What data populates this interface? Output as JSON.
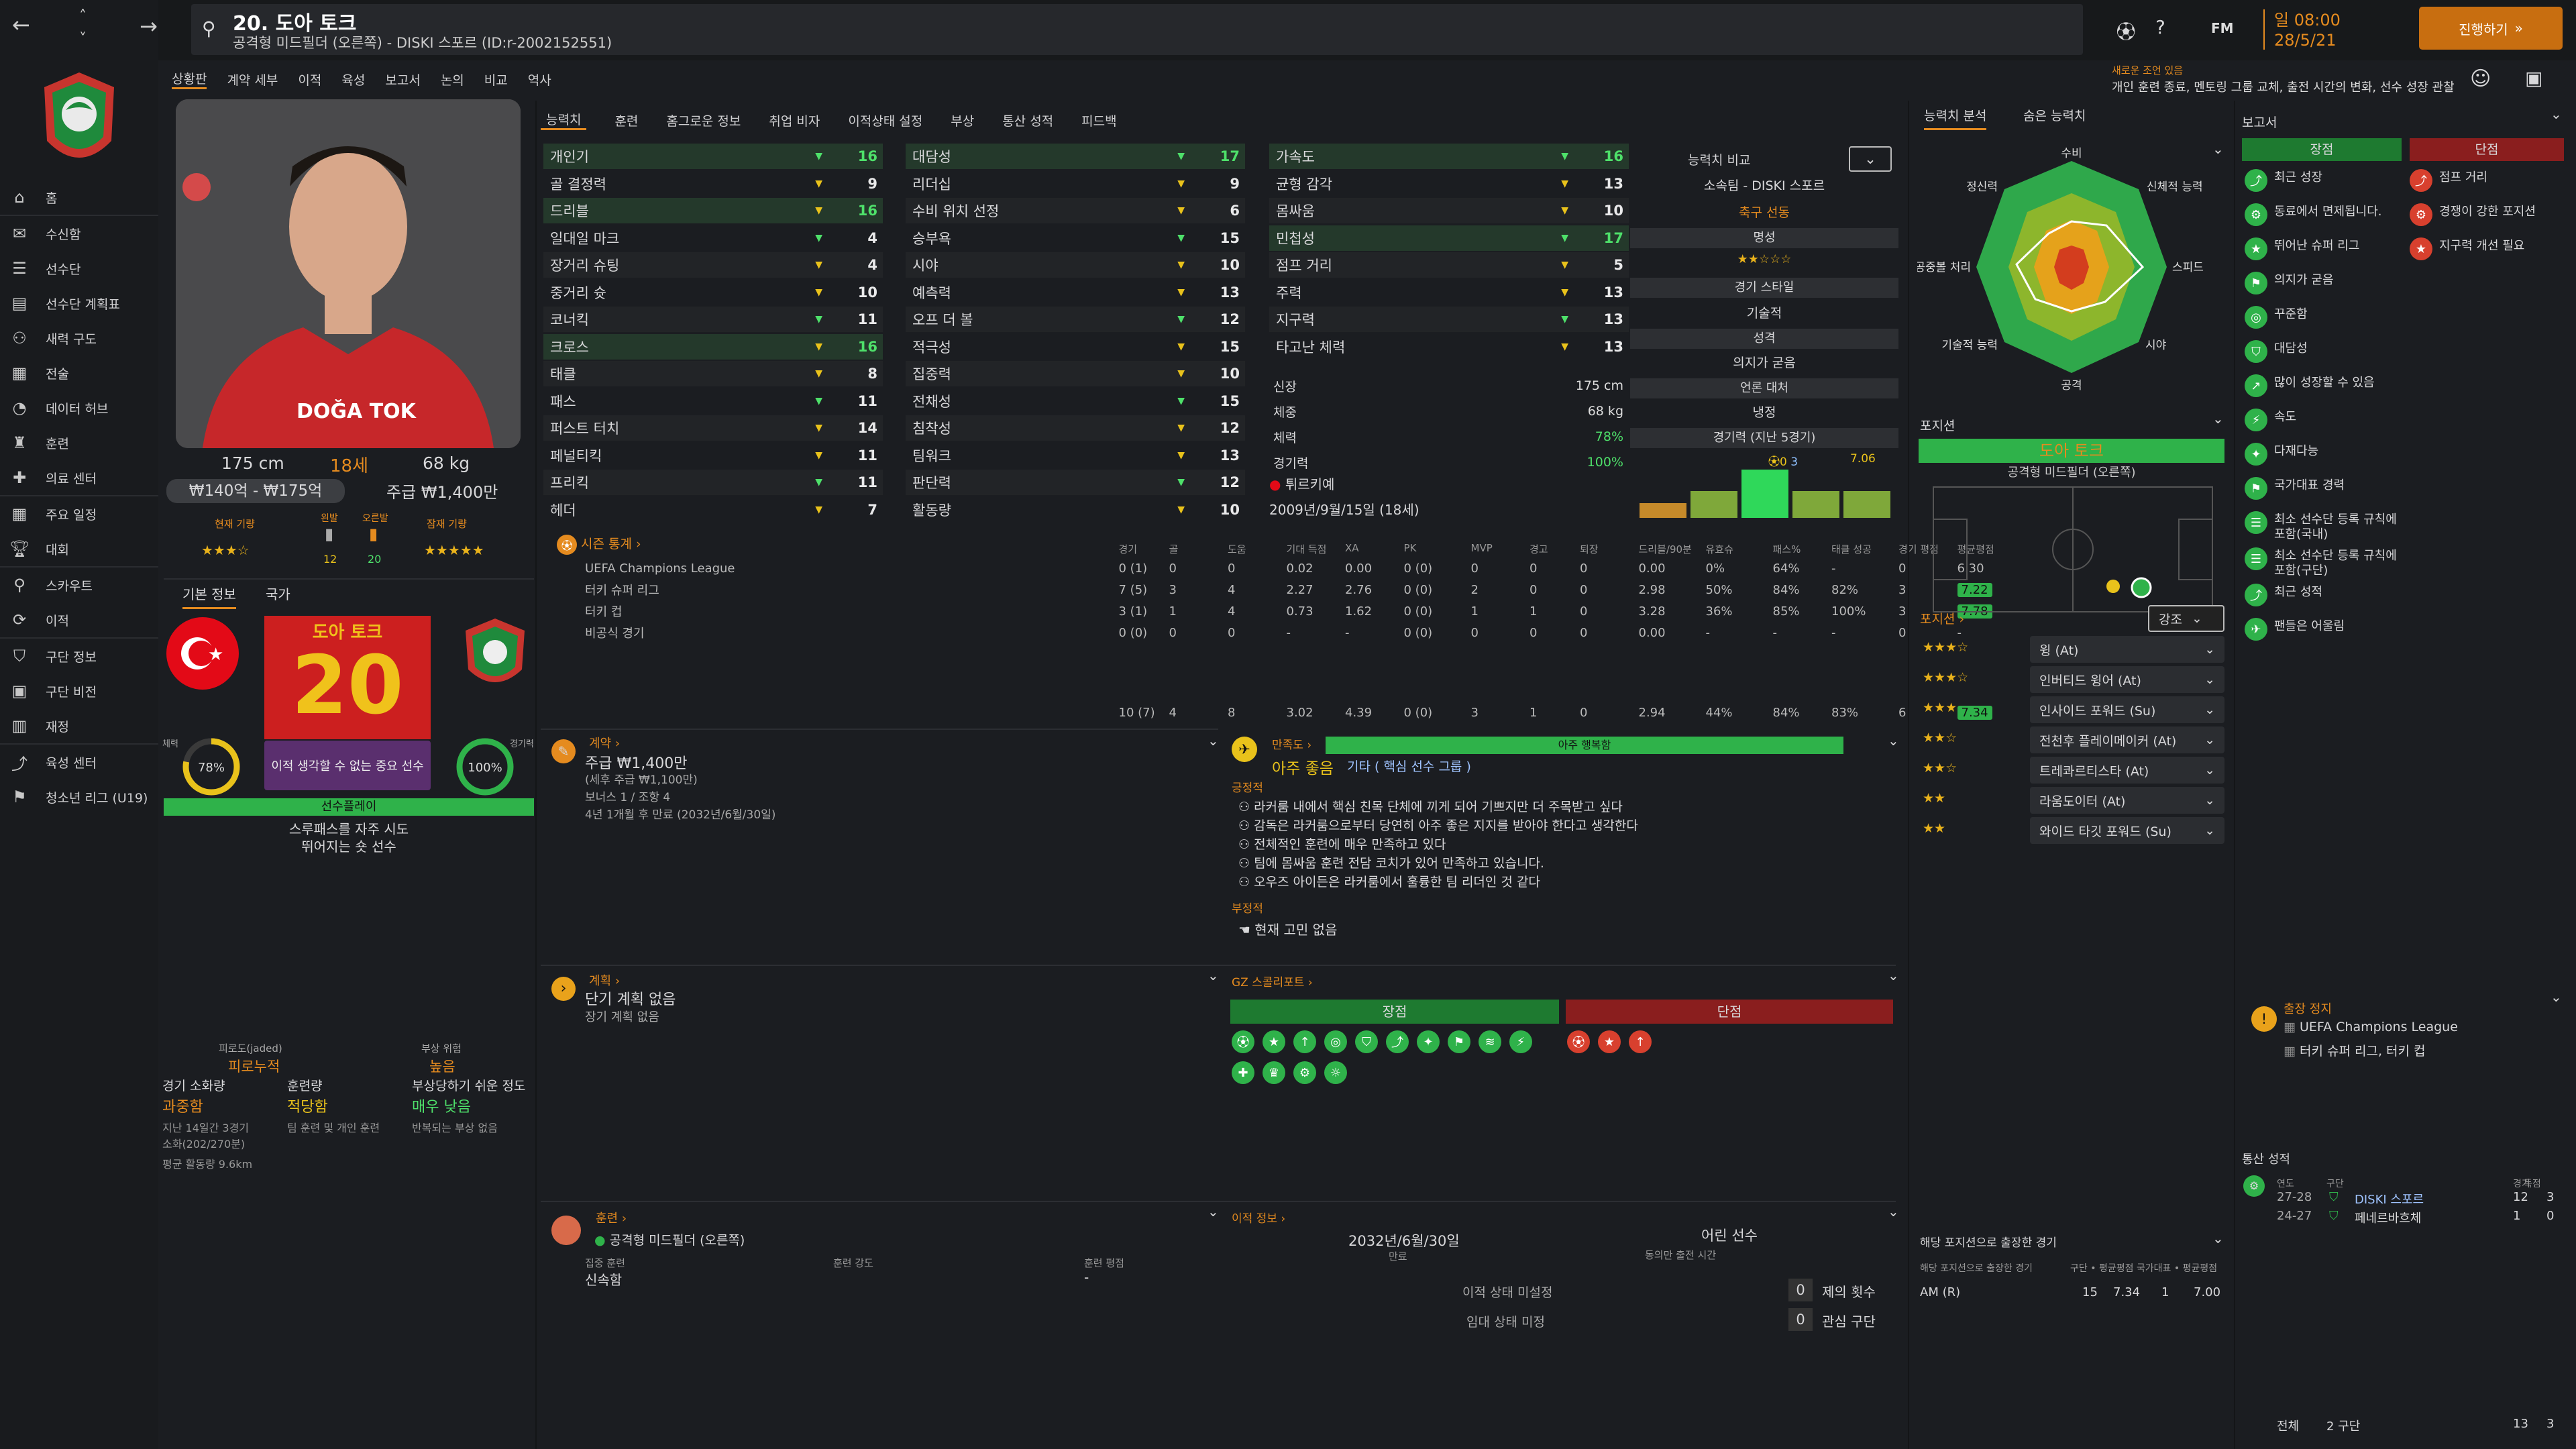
{
  "header": {
    "title": "20. 도아 토크",
    "subtitle": "공격형 미드필더 (오른쪽) - DISKI 스포르 (ID:r-2002152551)",
    "day": "일 08:00",
    "date": "28/5/21",
    "continue": "진행하기",
    "notice_title": "새로운 조언 있음",
    "notice": "개인 훈련 종료, 멘토링 그룹 교체, 출전 시간의 변화, 선수 성장 관찰",
    "fm": "FM"
  },
  "nav": {
    "items": [
      "홈",
      "수신함",
      "선수단",
      "선수단 계획표",
      "새력 구도",
      "전술",
      "데이터 허브",
      "훈련",
      "의료 센터",
      "주요 일정",
      "대회",
      "스카우트",
      "이적",
      "구단 정보",
      "구단 비전",
      "재정",
      "육성 센터",
      "청소년 리그 (U19)"
    ]
  },
  "menu": {
    "items": [
      "상황판",
      "계약 세부",
      "이적",
      "육성",
      "보고서",
      "논의",
      "비교",
      "역사"
    ]
  },
  "tabs": {
    "items": [
      "능력치",
      "훈련",
      "홈그로운 정보",
      "취업 비자",
      "이적상태 설정",
      "부상",
      "통산 성적",
      "피드백"
    ]
  },
  "player": {
    "shirt": "DOĞA TOK",
    "height": "175 cm",
    "age": "18세",
    "weight": "68 kg",
    "value": "₩140억 - ₩175억",
    "wage": "주급 ₩1,400만",
    "cur_label": "현재 기량",
    "pot_label": "잠재 기량",
    "left_label": "왼발",
    "right_label": "오른발",
    "left_val": "12",
    "right_val": "20",
    "cur_stars": "★★★☆",
    "pot_stars": "★★★★★",
    "tab_basic": "기본 정보",
    "tab_nation": "국가",
    "name_ko": "도아 토크",
    "number": "20",
    "fit_pct": "78%",
    "match_pct": "100%",
    "fit_label": "체력",
    "match_label": "경기력",
    "important": "이적 생각할 수 없는 중요 선수",
    "status_bar": "선수플레이",
    "trait1": "스루패스를 자주 시도",
    "trait2": "뛰어지는 숏 선수",
    "fatigue_label": "피로도(jaded)",
    "fatigue": "피로누적",
    "injury_label": "부상 위험",
    "injury": "높음",
    "load_label": "경기 소화량",
    "load": "과중함",
    "train_label": "훈련량",
    "train": "적당함",
    "inj2_label": "부상당하기 쉬운 정도",
    "inj2": "매우 낮음",
    "l1": "지난 14일간 3경기",
    "l2": "소화(202/270분)",
    "l3": "평균 활동량 9.6km",
    "t1": "팀 훈련 및 개인 훈련",
    "i1": "반복되는 부상 없음"
  },
  "attrs": {
    "col1": [
      [
        "개인기",
        "16",
        "g"
      ],
      [
        "골 결정력",
        "9",
        "w"
      ],
      [
        "드리블",
        "16",
        "g"
      ],
      [
        "일대일 마크",
        "4",
        "w"
      ],
      [
        "장거리 슈팅",
        "4",
        "w"
      ],
      [
        "중거리 슛",
        "10",
        "w"
      ],
      [
        "코너킥",
        "11",
        "w"
      ],
      [
        "크로스",
        "16",
        "g"
      ],
      [
        "태클",
        "8",
        "w"
      ],
      [
        "패스",
        "11",
        "w"
      ],
      [
        "퍼스트 터치",
        "14",
        "w"
      ],
      [
        "페널티킥",
        "11",
        "w"
      ],
      [
        "프리킥",
        "11",
        "w"
      ],
      [
        "헤더",
        "7",
        "w"
      ]
    ],
    "col2": [
      [
        "대담성",
        "17",
        "g"
      ],
      [
        "리더십",
        "9",
        "w"
      ],
      [
        "수비 위치 선정",
        "6",
        "w"
      ],
      [
        "승부욕",
        "15",
        "w"
      ],
      [
        "시야",
        "10",
        "w"
      ],
      [
        "예측력",
        "13",
        "w"
      ],
      [
        "오프 더 볼",
        "12",
        "w"
      ],
      [
        "적극성",
        "15",
        "w"
      ],
      [
        "집중력",
        "10",
        "w"
      ],
      [
        "전채성",
        "15",
        "w"
      ],
      [
        "침착성",
        "12",
        "w"
      ],
      [
        "팀워크",
        "13",
        "w"
      ],
      [
        "판단력",
        "12",
        "w"
      ],
      [
        "활동량",
        "10",
        "w"
      ]
    ],
    "col3": [
      [
        "가속도",
        "16",
        "g"
      ],
      [
        "균형 감각",
        "13",
        "w"
      ],
      [
        "몸싸움",
        "10",
        "w"
      ],
      [
        "민첩성",
        "17",
        "g"
      ],
      [
        "점프 거리",
        "5",
        "w"
      ],
      [
        "주력",
        "13",
        "w"
      ],
      [
        "지구력",
        "13",
        "w"
      ],
      [
        "타고난 체력",
        "13",
        "w"
      ]
    ],
    "bio": [
      [
        "신장",
        "175 cm"
      ],
      [
        "체중",
        "68 kg"
      ],
      [
        "체력",
        "78%"
      ],
      [
        "경기력",
        "100%"
      ]
    ],
    "nation": "튀르키예",
    "dob": "2009년/9월/15일 (18세)"
  },
  "compare": {
    "label": "능력치 비교",
    "club": "소속팀 - DISKI 스포르",
    "role": "축구 선동",
    "rep": "명성",
    "style": "경기 스타일",
    "style_v": "기술적",
    "pers": "성격",
    "pers_v": "의지가 굳음",
    "media": "언론 대처",
    "media_v": "냉정",
    "form": "경기력 (지난 5경기)",
    "form_a": "0",
    "form_b": "3",
    "form_r": "7.06"
  },
  "stats": {
    "title": "시즌 통계",
    "headers": [
      "경기",
      "골",
      "도움",
      "기대 득점",
      "XA",
      "PK",
      "MVP",
      "경고",
      "퇴장",
      "드리블/90분",
      "유효슈",
      "패스%",
      "태클 성공",
      "경기 평점",
      "평균평점"
    ],
    "rows": [
      [
        "UEFA Champions League",
        "0 (1)",
        "0",
        "0",
        "0.02",
        "0.00",
        "0 (0)",
        "0",
        "0",
        "0",
        "0.00",
        "0%",
        "64%",
        "-",
        "0",
        "6.30"
      ],
      [
        "터키 슈퍼 리그",
        "7 (5)",
        "3",
        "4",
        "2.27",
        "2.76",
        "0 (0)",
        "2",
        "0",
        "0",
        "2.98",
        "50%",
        "84%",
        "82%",
        "3",
        "7.22"
      ],
      [
        "터키 컵",
        "3 (1)",
        "1",
        "4",
        "0.73",
        "1.62",
        "0 (0)",
        "1",
        "1",
        "0",
        "3.28",
        "36%",
        "85%",
        "100%",
        "3",
        "7.78"
      ],
      [
        "비공식 경기",
        "0 (0)",
        "0",
        "0",
        "-",
        "-",
        "0 (0)",
        "0",
        "0",
        "0",
        "0.00",
        "-",
        "-",
        "-",
        "0",
        "-"
      ]
    ],
    "total": [
      "10 (7)",
      "4",
      "8",
      "3.02",
      "4.39",
      "0 (0)",
      "3",
      "1",
      "0",
      "2.94",
      "44%",
      "84%",
      "83%",
      "6",
      "7.34"
    ]
  },
  "contract": {
    "title": "계약",
    "wage": "주급 ₩1,400만",
    "wage_sub": "(세후 주급 ₩1,100만)",
    "bonus": "보너스 1 / 조항 4",
    "expire": "4년 1개월 후 만료 (2032년/6월/30일)"
  },
  "happy": {
    "title": "만족도",
    "bar": "아주 행복함",
    "status": "아주 좋음",
    "status_role": "기타 ( 핵심 선수 그룹 )",
    "pos_label": "긍정적",
    "pos": [
      "라커룸 내에서 핵심 친목 단체에 끼게 되어 기쁘지만 더 주목받고 싶다",
      "감독은 라커룸으로부터 당연히 아주 좋은 지지를 받아야 한다고 생각한다",
      "전체적인 훈련에 매우 만족하고 있다",
      "팀에 몸싸움 훈련 전담 코치가 있어 만족하고 있습니다.",
      "오우즈 아이든은 라커룸에서 훌륭한 팀 리더인 것 같다"
    ],
    "neg_label": "부정적",
    "neg": [
      "현재 고민 없음"
    ]
  },
  "plan": {
    "title": "계획",
    "p1": "단기 계획 없음",
    "p2": "장기 계획 없음"
  },
  "gz": {
    "title": "GZ 스콜리포트",
    "strong": "장점",
    "weak": "단점"
  },
  "training": {
    "title": "훈련",
    "pos": "공격형 미드필더 (오른쪽)",
    "focus_label": "집중 훈련",
    "focus": "신속함",
    "intensity": "훈련 강도",
    "rating": "훈련 평점",
    "rating_v": "-"
  },
  "transfer": {
    "title": "이적 정보",
    "date": "2032년/6월/30일",
    "date_l": "만료",
    "youth": "어린 선수",
    "youth_l": "동의만 출전 시간",
    "status": "이적 상태 미설정",
    "loan": "임대 상태 미정",
    "offers": "제의 횟수",
    "offers_v": "0",
    "interest": "관심 구단",
    "interest_v": "0"
  },
  "ability": {
    "tab1": "능력치 분석",
    "tab2": "숨은 능력치",
    "axes": [
      "수비",
      "신체적 능력",
      "스피드",
      "시야",
      "공격",
      "기술적 능력",
      "공중볼 처리",
      "정신력"
    ]
  },
  "positions": {
    "title": "포지션",
    "player": "도아 토크",
    "pos": "공격형 미드필더 (오른쪽)",
    "roles_title": "포지션",
    "focus": "강조",
    "roles": [
      [
        "★★★☆",
        "윙 (At)"
      ],
      [
        "★★★☆",
        "인버티드 윙어 (At)"
      ],
      [
        "★★★",
        "인사이드 포워드 (Su)"
      ],
      [
        "★★☆",
        "전천후 플레이메이커 (At)"
      ],
      [
        "★★☆",
        "트레콰르티스타 (At)"
      ],
      [
        "★★",
        "라움도이터 (At)"
      ],
      [
        "★★",
        "와이드 타깃 포워드 (Su)"
      ]
    ],
    "played_title": "해당 포지션으로 출장한 경기",
    "played_sub": "해당 포지션으로 출장한 경기",
    "played_h": [
      "구단",
      "평균평점",
      "국가대표",
      "평균평점"
    ],
    "played_row": [
      "AM (R)",
      "15",
      "7.34",
      "1",
      "7.00"
    ]
  },
  "report": {
    "title": "보고서",
    "pros": "장점",
    "cons": "단점",
    "pro_items": [
      "최근 성장",
      "동료에서 면제됩니다.",
      "뛰어난 슈퍼 리그",
      "의지가 굳음",
      "꾸준함",
      "대담성",
      "많이 성장할 수 있음",
      "속도",
      "다재다능",
      "국가대표 경력",
      "최소 선수단 등록 규칙에 포함(국내)",
      "최소 선수단 등록 규칙에 포함(구단)",
      "최근 성적",
      "팬들은 어울림"
    ],
    "con_items": [
      "점프 거리",
      "경쟁이 강한 포지션",
      "지구력 개선 필요"
    ]
  },
  "susp": {
    "title": "출장 정지",
    "items": [
      "UEFA Champions League",
      "터키 슈퍼 리그, 터키 컵"
    ]
  },
  "career": {
    "title": "통산 성적",
    "h": [
      "연도",
      "구단",
      "경기",
      "득점"
    ],
    "rows": [
      [
        "27-28",
        "DISKI 스포르",
        "12",
        "3"
      ],
      [
        "24-27",
        "페네르바흐체",
        "1",
        "0"
      ]
    ],
    "total_l": "전체",
    "total_c": "2 구단",
    "total_g": "13",
    "total_s": "3"
  },
  "colors": {
    "accent": "#e58b1f",
    "green": "#33c24b",
    "red": "#c8352e",
    "blue": "#2b3f56"
  }
}
